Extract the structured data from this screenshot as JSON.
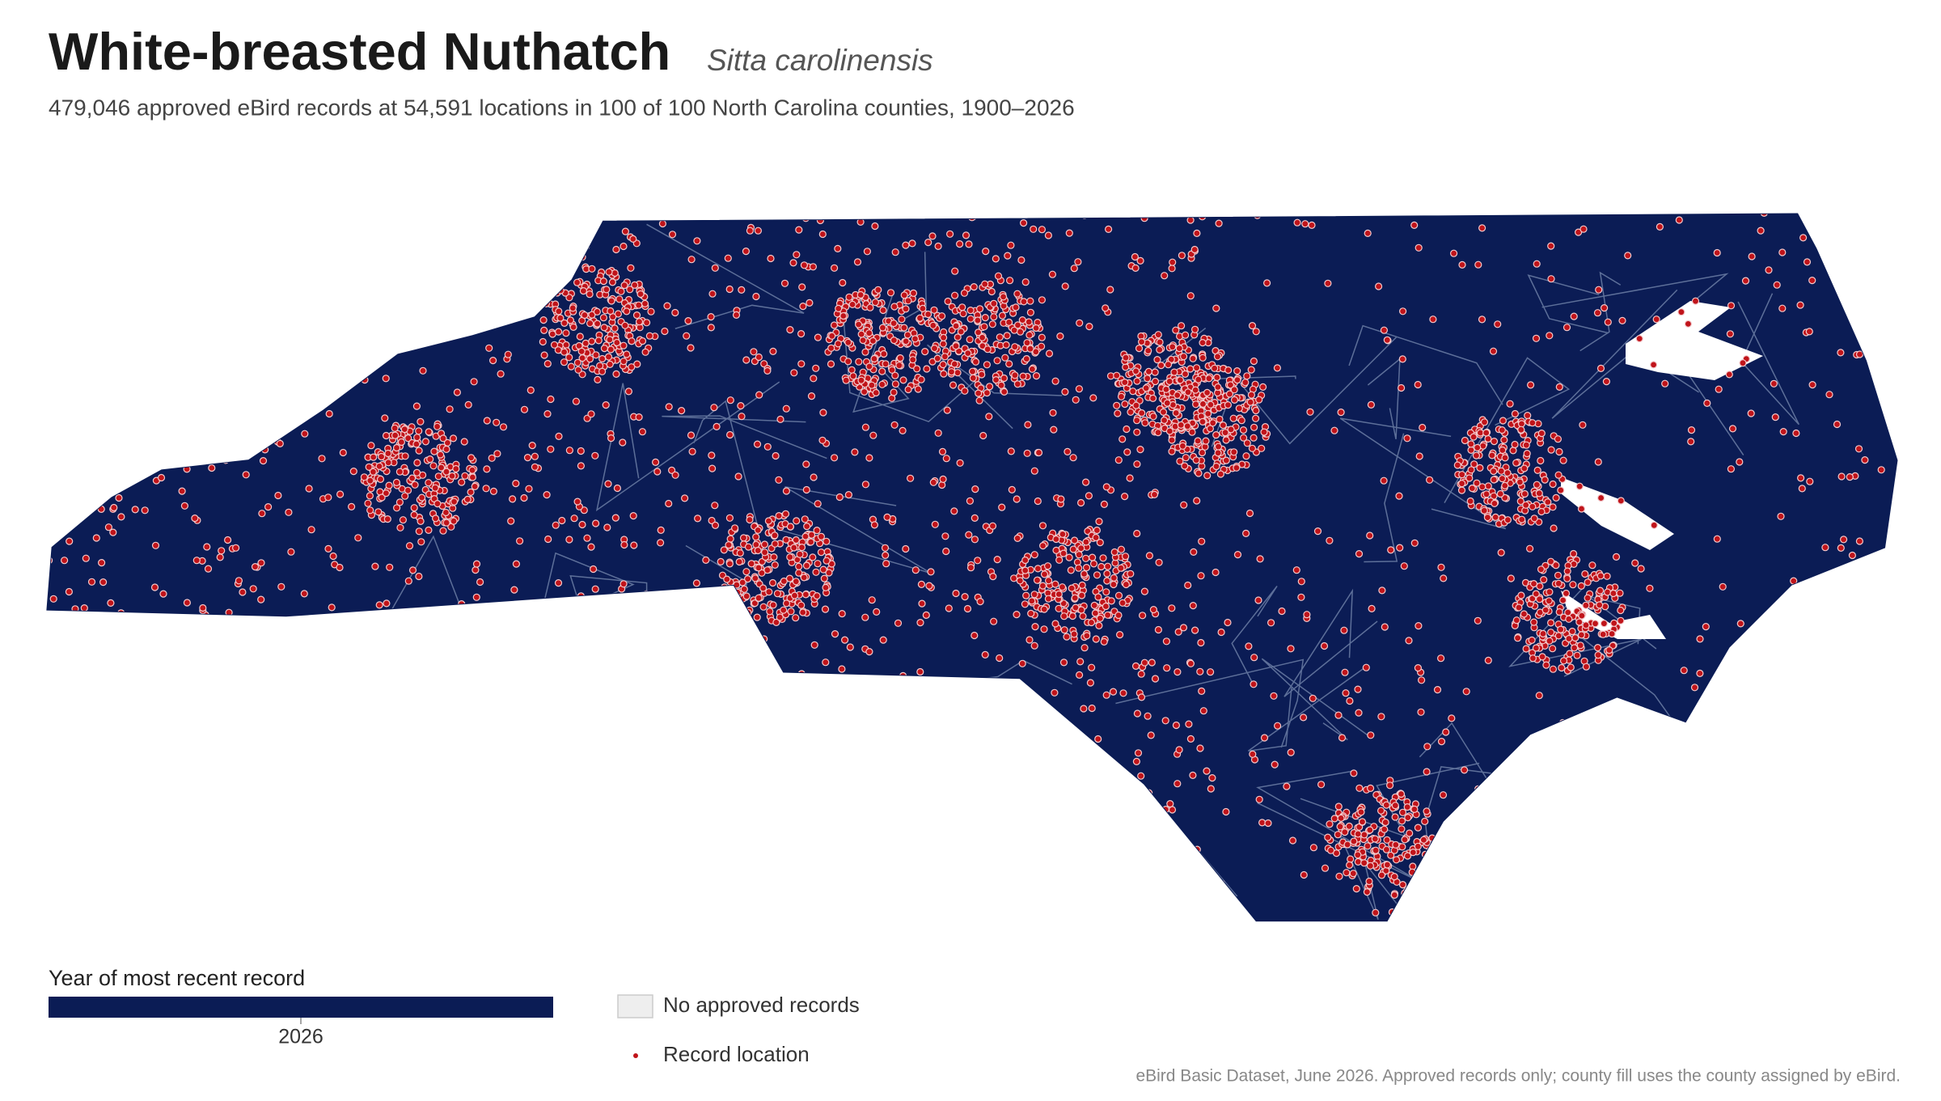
{
  "header": {
    "title": "White-breasted Nuthatch",
    "species": "Sitta carolinensis",
    "subtitle": "479,046 approved eBird records at 54,591 locations in 100 of 100 North Carolina counties, 1900–2026"
  },
  "legend": {
    "title": "Year of most recent record",
    "tick_label": "2026",
    "no_records": "No approved records",
    "record_location": "Record location"
  },
  "source": "eBird Basic Dataset, June 2026. Approved records only; county fill uses the county assigned by eBird."
}
